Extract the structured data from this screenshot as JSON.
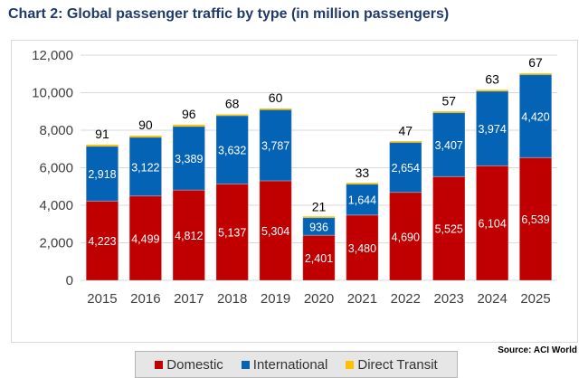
{
  "title": "Chart 2: Global passenger traffic by type (in million passengers)",
  "source": "Source: ACI World",
  "colors": {
    "domestic": "#c00000",
    "international": "#0563b6",
    "transit": "#ffc000",
    "gridline": "#d9d9d9",
    "axis_text": "#404040"
  },
  "chart_data": {
    "type": "bar",
    "stacked": true,
    "categories": [
      "2015",
      "2016",
      "2017",
      "2018",
      "2019",
      "2020",
      "2021",
      "2022",
      "2023",
      "2024",
      "2025"
    ],
    "series": [
      {
        "name": "Domestic",
        "color": "#c00000",
        "label_color": "#ffffff",
        "values": [
          4223,
          4499,
          4812,
          5137,
          5304,
          2401,
          3480,
          4690,
          5525,
          6104,
          6539
        ]
      },
      {
        "name": "International",
        "color": "#0563b6",
        "label_color": "#ffffff",
        "values": [
          2918,
          3122,
          3389,
          3632,
          3787,
          936,
          1644,
          2654,
          3407,
          3974,
          4420
        ]
      },
      {
        "name": "Direct Transit",
        "color": "#ffc000",
        "label_color": "#000000",
        "label_above": true,
        "values": [
          91,
          90,
          96,
          68,
          60,
          21,
          33,
          47,
          57,
          63,
          67
        ]
      }
    ],
    "ylim": [
      0,
      12000
    ],
    "yticks": [
      0,
      2000,
      4000,
      6000,
      8000,
      10000,
      12000
    ],
    "ytick_labels": [
      "0",
      "2,000",
      "4,000",
      "6,000",
      "8,000",
      "10,000",
      "12,000"
    ],
    "grid": true,
    "legend": "bottom"
  }
}
